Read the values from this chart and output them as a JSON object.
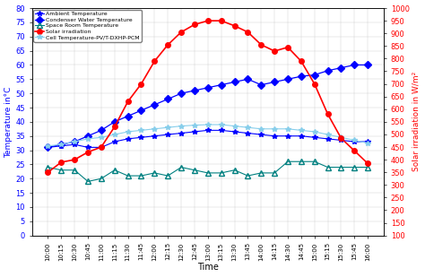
{
  "time_labels": [
    "10:00",
    "10:15",
    "10:30",
    "10:45",
    "11:00",
    "11:15",
    "11:30",
    "11:45",
    "12:00",
    "12:15",
    "12:30",
    "12:45",
    "13:00",
    "13:15",
    "13:30",
    "13:45",
    "14:00",
    "14:15",
    "14:30",
    "14:45",
    "15:00",
    "15:15",
    "15:30",
    "15:45",
    "16:00"
  ],
  "ambient_temp": [
    31,
    31.5,
    32,
    31,
    31,
    33,
    34,
    34.5,
    35,
    35.5,
    36,
    36.5,
    37,
    37,
    36.5,
    36,
    35.5,
    35,
    35,
    35,
    34.5,
    34,
    33.5,
    33,
    33
  ],
  "condenser_water_temp": [
    31,
    32,
    33,
    35,
    37,
    40,
    42,
    44,
    46,
    48,
    50,
    51,
    52,
    53,
    54,
    55,
    53,
    54,
    55,
    56,
    56.5,
    58,
    59,
    60,
    60
  ],
  "space_room_temp": [
    24,
    23,
    23,
    19,
    20,
    23,
    21,
    21,
    22,
    21,
    24,
    23,
    22,
    22,
    23,
    21,
    22,
    22,
    26,
    26,
    26,
    24,
    24,
    24,
    24
  ],
  "solar_irradiation": [
    350,
    390,
    400,
    430,
    450,
    530,
    630,
    700,
    790,
    855,
    905,
    935,
    950,
    950,
    930,
    905,
    855,
    830,
    845,
    790,
    700,
    580,
    485,
    435,
    385
  ],
  "cell_temp_pv": [
    31.5,
    32,
    33,
    34,
    34.5,
    35.5,
    36.5,
    37,
    37.5,
    38,
    38.5,
    38.8,
    39,
    39,
    38.5,
    38,
    37.5,
    37.5,
    37.5,
    37,
    36.5,
    35.5,
    34.5,
    33.5,
    32.5
  ],
  "ylabel_left": "Temperature in°C",
  "ylabel_right": "Solar irradiation in W/m²",
  "xlabel": "Time",
  "ylim_left": [
    0,
    80
  ],
  "ylim_right": [
    100,
    1000
  ],
  "yticks_left": [
    0,
    5,
    10,
    15,
    20,
    25,
    30,
    35,
    40,
    45,
    50,
    55,
    60,
    65,
    70,
    75,
    80
  ],
  "yticks_right": [
    100,
    150,
    200,
    250,
    300,
    350,
    400,
    450,
    500,
    550,
    600,
    650,
    700,
    750,
    800,
    850,
    900,
    950,
    1000
  ],
  "legend_labels": [
    "Ambient Temperature",
    "Condenser Water Temperature",
    "Space Room Temperature",
    "Solar irradiation",
    "Cell Temperature-PV/T-DXHP-PCM"
  ]
}
